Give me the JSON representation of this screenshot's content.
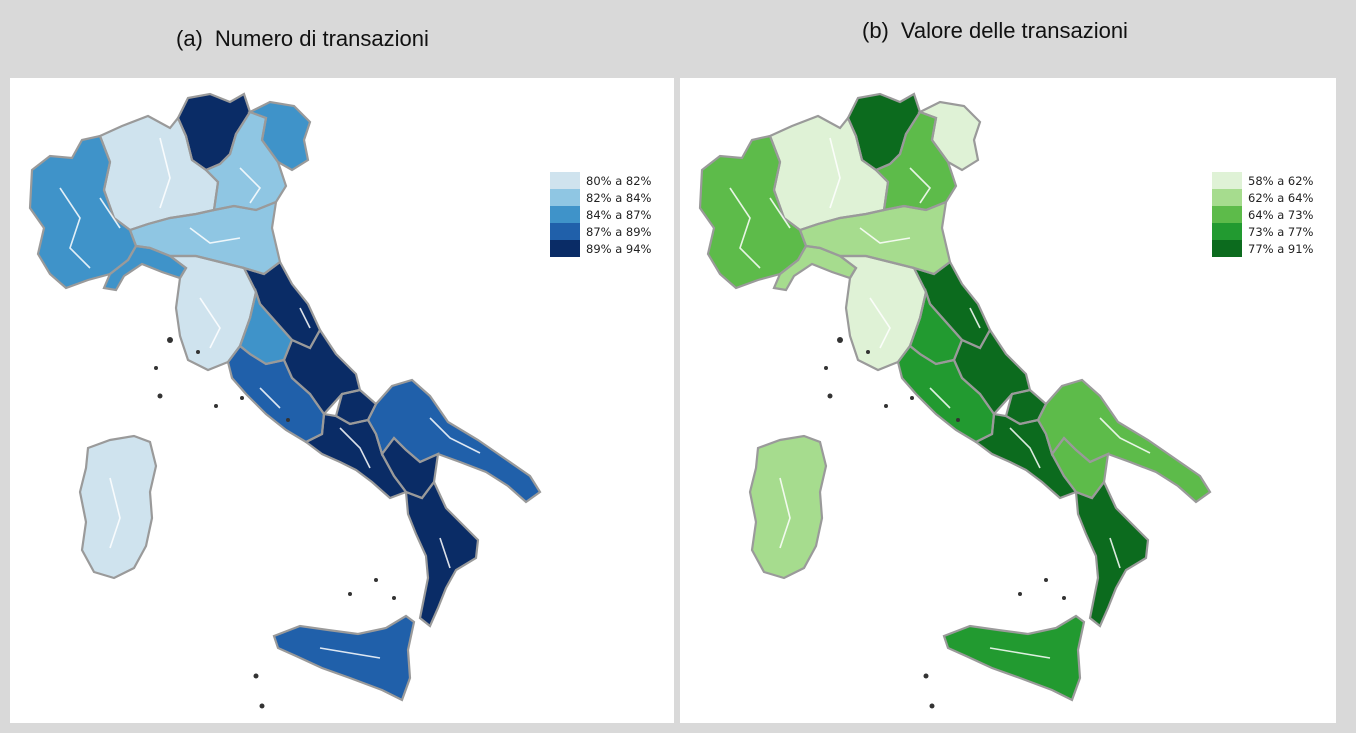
{
  "panels": [
    {
      "tag": "(a)",
      "title": "Numero di transazioni",
      "legend": [
        {
          "label": "80% a 82%",
          "color": "#cfe3ee"
        },
        {
          "label": "82% a 84%",
          "color": "#8fc6e3"
        },
        {
          "label": "84% a 87%",
          "color": "#3f93c9"
        },
        {
          "label": "87% a 89%",
          "color": "#2060aa"
        },
        {
          "label": "89% a 94%",
          "color": "#0a2c66"
        }
      ],
      "region_classes": {
        "valle_aosta_piemonte": 2,
        "lombardia": 0,
        "trentino": 4,
        "veneto": 1,
        "friuli": 2,
        "liguria": 2,
        "emilia_romagna": 1,
        "toscana": 0,
        "marche": 4,
        "umbria": 2,
        "lazio": 3,
        "abruzzo": 4,
        "molise": 4,
        "campania": 4,
        "puglia": 3,
        "basilicata": 4,
        "calabria": 4,
        "sicilia": 3,
        "sardegna": 0
      }
    },
    {
      "tag": "(b)",
      "title": "Valore delle transazioni",
      "legend": [
        {
          "label": "58% a 62%",
          "color": "#dff2d6"
        },
        {
          "label": "62% a 64%",
          "color": "#a6dc8e"
        },
        {
          "label": "64% a 73%",
          "color": "#5dbb4a"
        },
        {
          "label": "73% a 77%",
          "color": "#229a30"
        },
        {
          "label": "77% a 91%",
          "color": "#0c6b1e"
        }
      ],
      "region_classes": {
        "valle_aosta_piemonte": 2,
        "lombardia": 0,
        "trentino": 4,
        "veneto": 2,
        "friuli": 0,
        "liguria": 1,
        "emilia_romagna": 1,
        "toscana": 0,
        "marche": 4,
        "umbria": 3,
        "lazio": 3,
        "abruzzo": 4,
        "molise": 4,
        "campania": 4,
        "puglia": 2,
        "basilicata": 2,
        "calabria": 4,
        "sicilia": 3,
        "sardegna": 1
      }
    }
  ]
}
